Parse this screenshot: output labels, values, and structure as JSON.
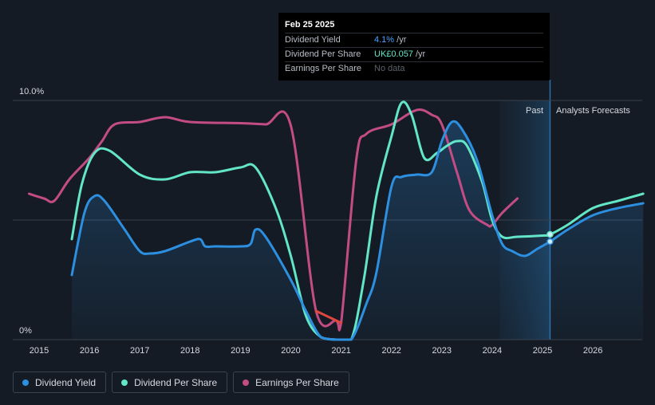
{
  "tooltip": {
    "date": "Feb 25 2025",
    "rows": [
      {
        "label": "Dividend Yield",
        "value": "4.1%",
        "unit": " /yr"
      },
      {
        "label": "Dividend Per Share",
        "value": "UK£0.057",
        "unit": " /yr"
      },
      {
        "label": "Earnings Per Share",
        "value": "No data",
        "unit": ""
      }
    ]
  },
  "labels": {
    "past": "Past",
    "forecast": "Analysts Forecasts"
  },
  "legend": [
    {
      "label": "Dividend Yield",
      "color": "#2d8fe0"
    },
    {
      "label": "Dividend Per Share",
      "color": "#63e6c8"
    },
    {
      "label": "Earnings Per Share",
      "color": "#c44c85"
    }
  ],
  "chart_data": {
    "type": "line",
    "y_tick_labels": [
      "10.0%",
      "0%"
    ],
    "ylim": [
      0,
      10
    ],
    "xlim": [
      2014.8,
      2027.0
    ],
    "x_ticks": [
      2015,
      2016,
      2017,
      2018,
      2019,
      2020,
      2021,
      2022,
      2023,
      2024,
      2025,
      2026
    ],
    "past_until": 2025.15,
    "forecast_shade_from": 2024.15,
    "series": [
      {
        "name": "Earnings Per Share",
        "color": "#c44c85",
        "points": [
          [
            2014.8,
            6.1
          ],
          [
            2015.1,
            5.9
          ],
          [
            2015.3,
            5.8
          ],
          [
            2015.6,
            6.7
          ],
          [
            2016.0,
            7.6
          ],
          [
            2016.25,
            8.3
          ],
          [
            2016.5,
            9.0
          ],
          [
            2017.0,
            9.1
          ],
          [
            2017.5,
            9.3
          ],
          [
            2018.0,
            9.1
          ],
          [
            2019.0,
            9.05
          ],
          [
            2019.5,
            9.0
          ],
          [
            2020.0,
            8.95
          ],
          [
            2020.5,
            1.2
          ],
          [
            2020.9,
            0.8
          ],
          [
            2021.0,
            0.7
          ],
          [
            2021.3,
            7.5
          ],
          [
            2021.5,
            8.6
          ],
          [
            2022.0,
            9.0
          ],
          [
            2022.5,
            9.6
          ],
          [
            2022.8,
            9.4
          ],
          [
            2023.0,
            9.0
          ],
          [
            2023.3,
            7.0
          ],
          [
            2023.55,
            5.4
          ],
          [
            2023.9,
            4.8
          ],
          [
            2024.0,
            4.8
          ],
          [
            2024.2,
            5.3
          ],
          [
            2024.5,
            5.9
          ]
        ],
        "highlight": {
          "from": 2020.4,
          "to": 2021.2,
          "color": "#e0483d"
        }
      },
      {
        "name": "Dividend Per Share",
        "color": "#63e6c8",
        "points": [
          [
            2015.65,
            4.2
          ],
          [
            2015.85,
            6.5
          ],
          [
            2016.1,
            7.8
          ],
          [
            2016.4,
            7.9
          ],
          [
            2017.0,
            6.9
          ],
          [
            2017.5,
            6.7
          ],
          [
            2018.0,
            7.0
          ],
          [
            2018.5,
            7.0
          ],
          [
            2019.0,
            7.2
          ],
          [
            2019.3,
            7.2
          ],
          [
            2019.7,
            5.5
          ],
          [
            2020.0,
            3.5
          ],
          [
            2020.3,
            1.0
          ],
          [
            2020.6,
            0.1
          ],
          [
            2020.9,
            0
          ],
          [
            2021.2,
            0
          ],
          [
            2021.45,
            2.5
          ],
          [
            2021.7,
            6.0
          ],
          [
            2022.0,
            8.5
          ],
          [
            2022.2,
            9.9
          ],
          [
            2022.4,
            9.4
          ],
          [
            2022.65,
            7.6
          ],
          [
            2022.9,
            7.8
          ],
          [
            2023.1,
            8.1
          ],
          [
            2023.3,
            8.3
          ],
          [
            2023.5,
            8.1
          ],
          [
            2023.8,
            6.6
          ],
          [
            2024.0,
            5.0
          ],
          [
            2024.2,
            4.3
          ],
          [
            2024.5,
            4.3
          ],
          [
            2025.0,
            4.35
          ],
          [
            2025.15,
            4.4
          ],
          [
            2025.5,
            4.8
          ],
          [
            2026.0,
            5.5
          ],
          [
            2026.5,
            5.8
          ],
          [
            2027.0,
            6.1
          ]
        ]
      },
      {
        "name": "Dividend Yield",
        "color": "#2d8fe0",
        "points": [
          [
            2015.65,
            2.7
          ],
          [
            2015.9,
            5.3
          ],
          [
            2016.1,
            6.0
          ],
          [
            2016.3,
            5.8
          ],
          [
            2016.7,
            4.6
          ],
          [
            2017.0,
            3.7
          ],
          [
            2017.2,
            3.6
          ],
          [
            2017.5,
            3.7
          ],
          [
            2018.0,
            4.1
          ],
          [
            2018.2,
            4.2
          ],
          [
            2018.3,
            3.9
          ],
          [
            2018.5,
            3.9
          ],
          [
            2019.0,
            3.9
          ],
          [
            2019.2,
            4.0
          ],
          [
            2019.3,
            4.6
          ],
          [
            2019.5,
            4.3
          ],
          [
            2020.0,
            2.5
          ],
          [
            2020.3,
            1.2
          ],
          [
            2020.6,
            0.1
          ],
          [
            2020.9,
            0
          ],
          [
            2021.2,
            0
          ],
          [
            2021.5,
            1.5
          ],
          [
            2021.7,
            2.8
          ],
          [
            2022.0,
            6.4
          ],
          [
            2022.2,
            6.8
          ],
          [
            2022.5,
            6.9
          ],
          [
            2022.8,
            7.0
          ],
          [
            2023.0,
            8.3
          ],
          [
            2023.2,
            9.1
          ],
          [
            2023.4,
            8.8
          ],
          [
            2023.7,
            7.5
          ],
          [
            2024.0,
            5.2
          ],
          [
            2024.2,
            4.0
          ],
          [
            2024.4,
            3.7
          ],
          [
            2024.65,
            3.5
          ],
          [
            2024.9,
            3.8
          ],
          [
            2025.15,
            4.1
          ],
          [
            2025.5,
            4.6
          ],
          [
            2026.0,
            5.2
          ],
          [
            2026.5,
            5.5
          ],
          [
            2027.0,
            5.7
          ]
        ],
        "area": true
      }
    ],
    "markers": [
      {
        "series": "Dividend Per Share",
        "x": 2025.15,
        "y": 4.4
      },
      {
        "series": "Dividend Yield",
        "x": 2025.15,
        "y": 4.1
      }
    ]
  }
}
